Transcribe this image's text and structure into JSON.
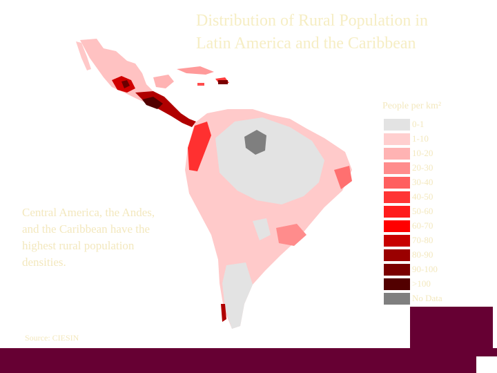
{
  "title": {
    "line1": "Distribution of Rural Population in",
    "line2": "Latin America and the Caribbean"
  },
  "legend": {
    "title": "People per km²",
    "items": [
      {
        "label": "0-1",
        "color": "#e3e3e3"
      },
      {
        "label": "1-10",
        "color": "#ffcfcf"
      },
      {
        "label": "10-20",
        "color": "#ffb3b3"
      },
      {
        "label": "20-30",
        "color": "#ff8c8c"
      },
      {
        "label": "30-40",
        "color": "#ff5f5f"
      },
      {
        "label": "40-50",
        "color": "#ff3535"
      },
      {
        "label": "50-60",
        "color": "#ff1c1c"
      },
      {
        "label": "60-70",
        "color": "#ff0000"
      },
      {
        "label": "70-80",
        "color": "#c80000"
      },
      {
        "label": "80-90",
        "color": "#9a0000"
      },
      {
        "label": "90-100",
        "color": "#7a0000"
      },
      {
        "label": ">100",
        "color": "#520000"
      },
      {
        "label": "No Data",
        "color": "#7f7f7f"
      }
    ]
  },
  "caption": "Central America, the Andes, and the Caribbean have the highest rural population densities.",
  "source": "Source: CIESIN",
  "colors": {
    "accent": "#660033",
    "text": "#f3e8be"
  }
}
